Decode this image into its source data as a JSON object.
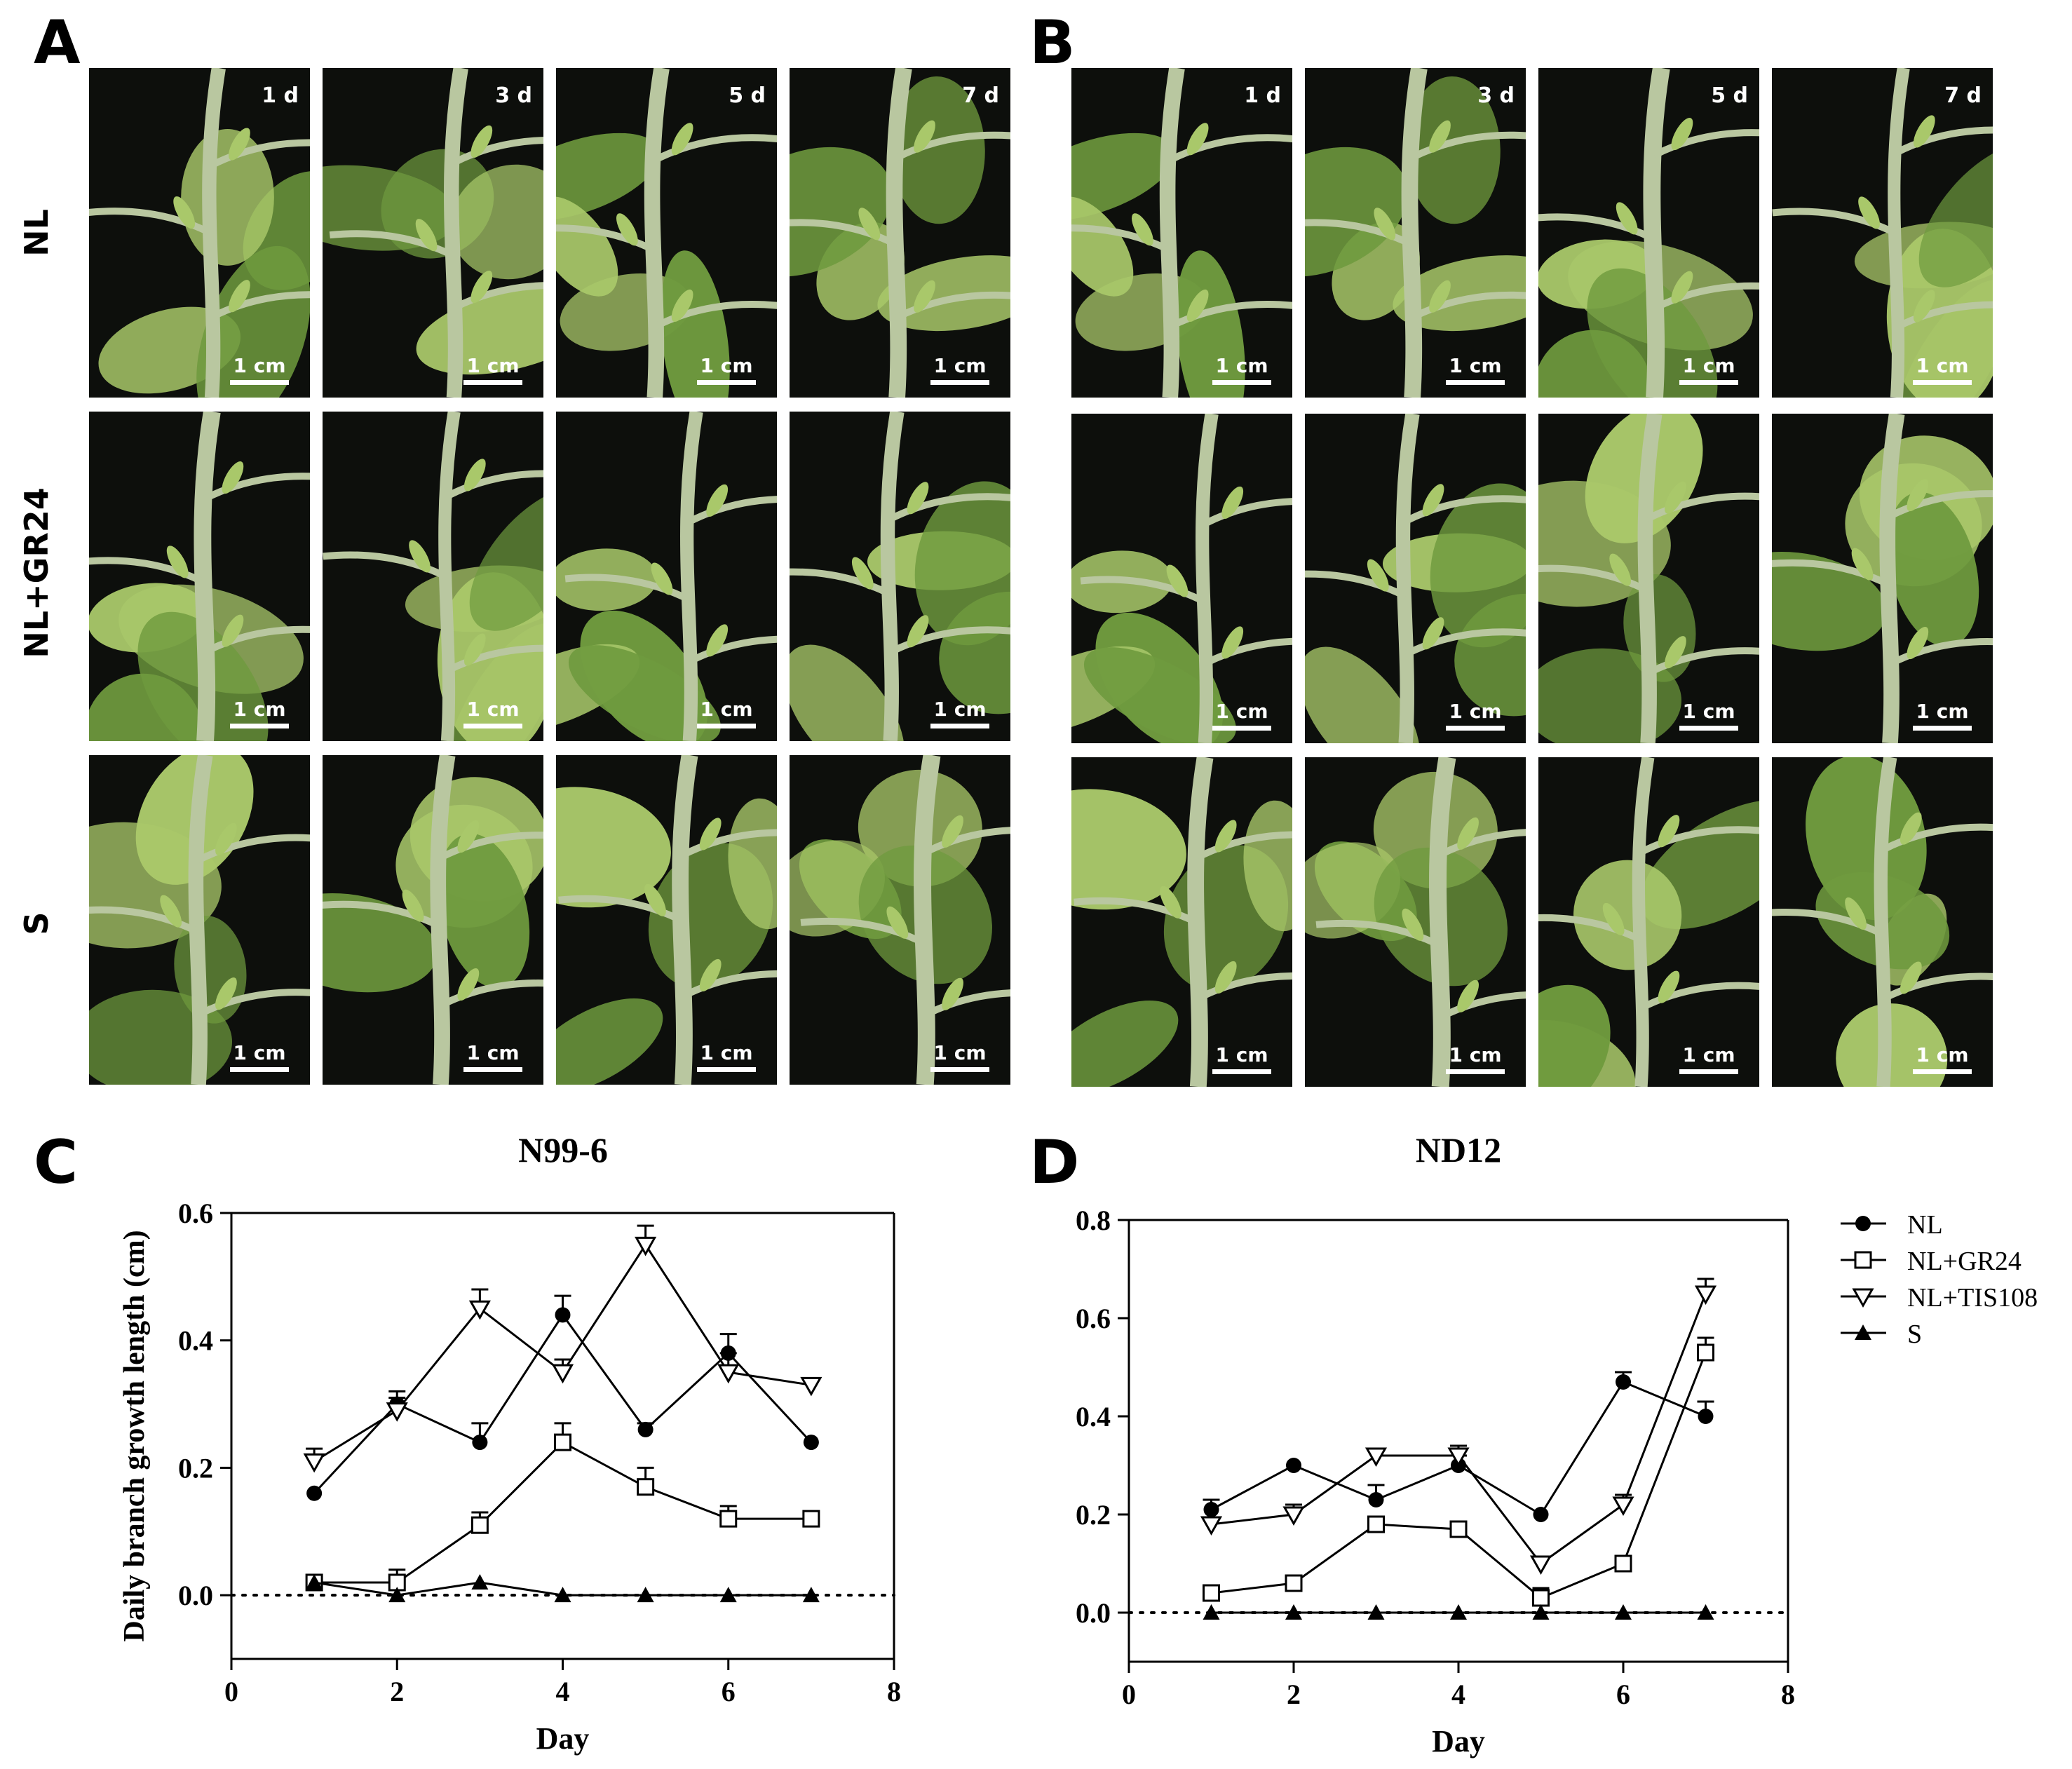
{
  "panels": {
    "a": {
      "letter": "A",
      "rows": [
        "NL",
        "NL+GR24",
        "S"
      ],
      "days": [
        "1 d",
        "3 d",
        "5 d",
        "7 d"
      ],
      "scale": "1 cm"
    },
    "b": {
      "letter": "B",
      "days": [
        "1 d",
        "3 d",
        "5 d",
        "7 d"
      ],
      "scale": "1 cm"
    },
    "c": {
      "letter": "C"
    },
    "d": {
      "letter": "D"
    }
  },
  "colors": {
    "background": "#0d0f0c",
    "leaf": "#6f9a3e",
    "leaf_light": "#a9c86a",
    "stem": "#b9c7a0",
    "line": "#000000"
  },
  "legend": [
    {
      "label": "NL",
      "marker": "circle-filled"
    },
    {
      "label": "NL+GR24",
      "marker": "square-open"
    },
    {
      "label": "NL+TIS108",
      "marker": "triangle-down-open"
    },
    {
      "label": "S",
      "marker": "triangle-up-filled"
    }
  ],
  "chart_data": [
    {
      "id": "C",
      "type": "line",
      "title": "N99-6",
      "xlabel": "Day",
      "ylabel": "Daily branch growth length (cm)",
      "xlim": [
        0,
        8
      ],
      "ylim": [
        -0.1,
        0.6
      ],
      "xticks": [
        0,
        2,
        4,
        6,
        8
      ],
      "yticks": [
        0.0,
        0.2,
        0.4,
        0.6
      ],
      "tick_labels_x": [
        "0",
        "2",
        "4",
        "6",
        "8"
      ],
      "tick_labels_y": [
        "0.0",
        "0.2",
        "0.4",
        "0.6"
      ],
      "zero_line": "dotted",
      "x": [
        1,
        2,
        3,
        4,
        5,
        6,
        7
      ],
      "series": [
        {
          "name": "NL",
          "marker": "circle-filled",
          "values": [
            0.16,
            0.3,
            0.24,
            0.44,
            0.26,
            0.38,
            0.24
          ],
          "errors": [
            0.0,
            0.02,
            0.03,
            0.03,
            0.01,
            0.03,
            0.0
          ]
        },
        {
          "name": "NL+GR24",
          "marker": "square-open",
          "values": [
            0.02,
            0.02,
            0.11,
            0.24,
            0.17,
            0.12,
            0.12
          ],
          "errors": [
            0.0,
            0.02,
            0.02,
            0.03,
            0.03,
            0.02,
            0.0
          ]
        },
        {
          "name": "NL+TIS108",
          "marker": "triangle-down-open",
          "values": [
            0.21,
            0.29,
            0.45,
            0.35,
            0.55,
            0.35,
            0.33
          ],
          "errors": [
            0.02,
            0.02,
            0.03,
            0.02,
            0.03,
            0.03,
            0.0
          ]
        },
        {
          "name": "S",
          "marker": "triangle-up-filled",
          "values": [
            0.02,
            0.0,
            0.02,
            0.0,
            0.0,
            0.0,
            0.0
          ],
          "errors": [
            0,
            0,
            0,
            0,
            0,
            0,
            0
          ]
        }
      ]
    },
    {
      "id": "D",
      "type": "line",
      "title": "ND12",
      "xlabel": "Day",
      "ylabel": "",
      "xlim": [
        0,
        8
      ],
      "ylim": [
        -0.1,
        0.8
      ],
      "xticks": [
        0,
        2,
        4,
        6,
        8
      ],
      "yticks": [
        0.0,
        0.2,
        0.4,
        0.6,
        0.8
      ],
      "tick_labels_x": [
        "0",
        "2",
        "4",
        "6",
        "8"
      ],
      "tick_labels_y": [
        "0.0",
        "0.2",
        "0.4",
        "0.6",
        "0.8"
      ],
      "zero_line": "dotted",
      "x": [
        1,
        2,
        3,
        4,
        5,
        6,
        7
      ],
      "series": [
        {
          "name": "NL",
          "marker": "circle-filled",
          "values": [
            0.21,
            0.3,
            0.23,
            0.3,
            0.2,
            0.47,
            0.4
          ],
          "errors": [
            0.02,
            0.0,
            0.03,
            0.02,
            0.0,
            0.02,
            0.03
          ]
        },
        {
          "name": "NL+GR24",
          "marker": "square-open",
          "values": [
            0.04,
            0.06,
            0.18,
            0.17,
            0.03,
            0.1,
            0.53
          ],
          "errors": [
            0.0,
            0.0,
            0.0,
            0.0,
            0.02,
            0.0,
            0.03
          ]
        },
        {
          "name": "NL+TIS108",
          "marker": "triangle-down-open",
          "values": [
            0.18,
            0.2,
            0.32,
            0.32,
            0.1,
            0.22,
            0.65
          ],
          "errors": [
            0.0,
            0.02,
            0.0,
            0.02,
            0.0,
            0.02,
            0.03
          ]
        },
        {
          "name": "S",
          "marker": "triangle-up-filled",
          "values": [
            0,
            0,
            0,
            0,
            0,
            0,
            0
          ],
          "errors": [
            0,
            0,
            0,
            0,
            0,
            0,
            0
          ]
        }
      ]
    }
  ]
}
